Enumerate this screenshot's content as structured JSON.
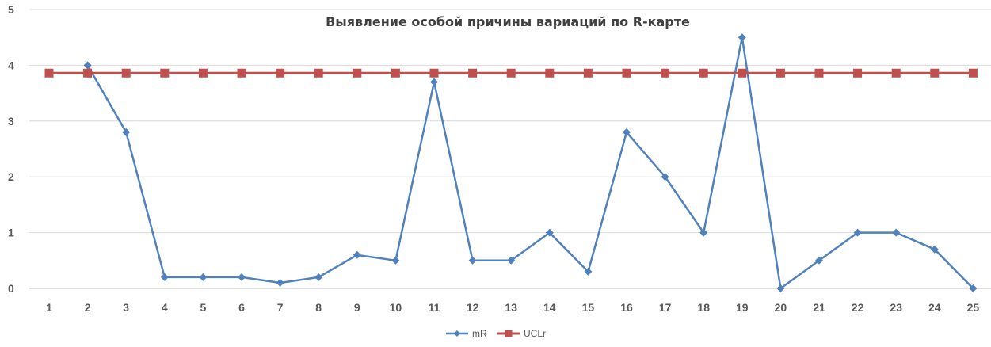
{
  "chart_data": {
    "type": "line",
    "title": "Выявление особой причины вариаций по R-карте",
    "xlabel": "",
    "ylabel": "",
    "categories": [
      "1",
      "2",
      "3",
      "4",
      "5",
      "6",
      "7",
      "8",
      "9",
      "10",
      "11",
      "12",
      "13",
      "14",
      "15",
      "16",
      "17",
      "18",
      "19",
      "20",
      "21",
      "22",
      "23",
      "24",
      "25"
    ],
    "ylim": [
      0,
      5
    ],
    "yticks": [
      "0",
      "1",
      "2",
      "3",
      "4",
      "5"
    ],
    "grid": "horizontal",
    "legend_position": "bottom",
    "series": [
      {
        "name": "mR",
        "color": "#4F81BD",
        "marker": "diamond",
        "values": [
          null,
          4.0,
          2.8,
          0.2,
          0.2,
          0.2,
          0.1,
          0.2,
          0.6,
          0.5,
          3.7,
          0.5,
          0.5,
          1.0,
          0.3,
          2.8,
          2.0,
          1.0,
          4.5,
          0.0,
          0.5,
          1.0,
          1.0,
          0.7,
          0.0
        ]
      },
      {
        "name": "UCLr",
        "color": "#C0504D",
        "marker": "square",
        "values": [
          3.86,
          3.86,
          3.86,
          3.86,
          3.86,
          3.86,
          3.86,
          3.86,
          3.86,
          3.86,
          3.86,
          3.86,
          3.86,
          3.86,
          3.86,
          3.86,
          3.86,
          3.86,
          3.86,
          3.86,
          3.86,
          3.86,
          3.86,
          3.86,
          3.86
        ]
      }
    ]
  }
}
